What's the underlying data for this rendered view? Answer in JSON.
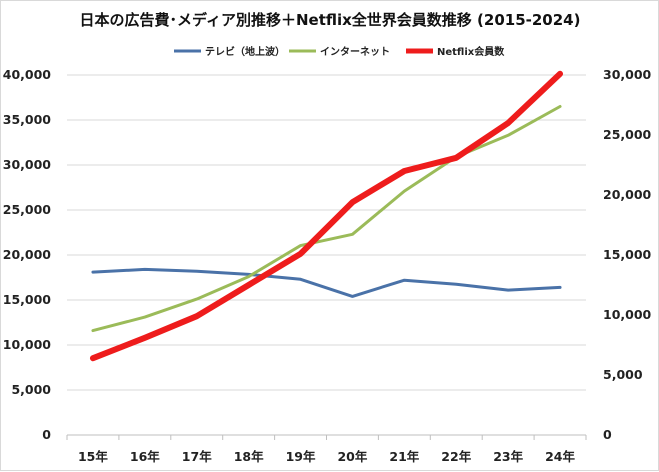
{
  "chart_data": {
    "type": "line",
    "title": "日本の広告費･メディア別推移＋Netflix全世界会員数推移 (2015-2024)",
    "categories": [
      "15年",
      "16年",
      "17年",
      "18年",
      "19年",
      "20年",
      "21年",
      "22年",
      "23年",
      "24年"
    ],
    "y_left": {
      "ylim": [
        0,
        40000
      ],
      "ticks": [
        "0",
        "5,000",
        "10,000",
        "15,000",
        "20,000",
        "25,000",
        "30,000",
        "35,000",
        "40,000"
      ]
    },
    "y_right": {
      "ylim": [
        0,
        30000
      ],
      "ticks": [
        "0",
        "5,000",
        "10,000",
        "15,000",
        "20,000",
        "25,000",
        "30,000"
      ]
    },
    "grid": true,
    "legend_position": "top",
    "series": [
      {
        "name": "テレビ（地上波）",
        "color": "#4a72a8",
        "axis": "left",
        "values": [
          18100,
          18400,
          18200,
          17850,
          17300,
          15400,
          17200,
          16750,
          16100,
          16400
        ]
      },
      {
        "name": "インターネット",
        "color": "#9bbb59",
        "axis": "left",
        "values": [
          11600,
          13100,
          15100,
          17600,
          21050,
          22300,
          27100,
          30900,
          33300,
          36500
        ]
      },
      {
        "name": "Netflix会員数",
        "color": "#ee1c1c",
        "axis": "right",
        "values": [
          6400,
          8100,
          9900,
          12500,
          15100,
          19400,
          22000,
          23100,
          26000,
          30100
        ]
      }
    ]
  }
}
